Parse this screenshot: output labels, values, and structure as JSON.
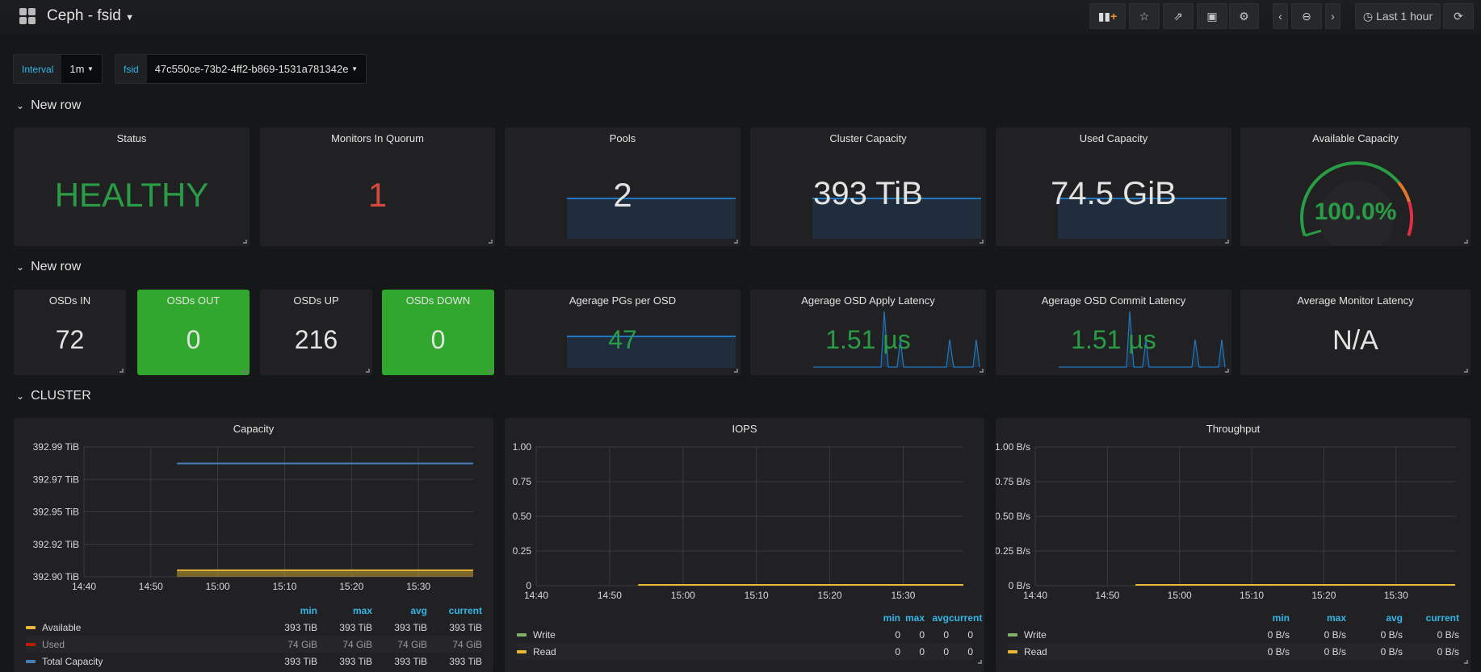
{
  "header": {
    "title": "Ceph - fsid",
    "time_range": "Last 1 hour"
  },
  "toolbar": {
    "icons": [
      "add-panel-icon",
      "star-icon",
      "share-icon",
      "save-icon",
      "gear-icon",
      "chevron-left-icon",
      "zoom-out-icon",
      "chevron-right-icon",
      "clock-icon",
      "refresh-icon"
    ]
  },
  "variables": [
    {
      "label": "Interval",
      "value": "1m"
    },
    {
      "label": "fsid",
      "value": "47c550ce-73b2-4ff2-b869-1531a781342e"
    }
  ],
  "rows": [
    {
      "title": "New row"
    },
    {
      "title": "New row"
    },
    {
      "title": "CLUSTER"
    }
  ],
  "stats1": [
    {
      "title": "Status",
      "value": "HEALTHY",
      "color": "#299c46"
    },
    {
      "title": "Monitors In Quorum",
      "value": "1",
      "color": "#d44a3a"
    },
    {
      "title": "Pools",
      "value": "2",
      "color": "#e3e3e3"
    },
    {
      "title": "Cluster Capacity",
      "value": "393 TiB",
      "color": "#e3e3e3"
    },
    {
      "title": "Used Capacity",
      "value": "74.5 GiB",
      "color": "#e3e3e3"
    },
    {
      "title": "Available Capacity",
      "value": "100.0%",
      "color": "#299c46",
      "gauge_percent": 100
    }
  ],
  "stats2": [
    {
      "title": "OSDs IN",
      "value": "72"
    },
    {
      "title": "OSDs OUT",
      "value": "0"
    },
    {
      "title": "OSDs UP",
      "value": "216"
    },
    {
      "title": "OSDs DOWN",
      "value": "0"
    },
    {
      "title": "Agerage PGs per OSD",
      "value": "47"
    },
    {
      "title": "Agerage OSD Apply Latency",
      "value": "1.51 µs"
    },
    {
      "title": "Agerage OSD Commit Latency",
      "value": "1.51 µs"
    },
    {
      "title": "Average Monitor Latency",
      "value": "N/A"
    }
  ],
  "legend_headers": [
    "min",
    "max",
    "avg",
    "current"
  ],
  "chart_data": [
    {
      "type": "line",
      "title": "Capacity",
      "x_ticks": [
        "14:40",
        "14:50",
        "15:00",
        "15:10",
        "15:20",
        "15:30"
      ],
      "y_ticks": [
        "392.99 TiB",
        "392.97 TiB",
        "392.95 TiB",
        "392.92 TiB",
        "392.90 TiB"
      ],
      "ylim": [
        392.9,
        392.99
      ],
      "xlim_minutes_after_1440": [
        0,
        58.2
      ],
      "series": [
        {
          "name": "Available",
          "color": "#eab839",
          "values": {
            "min": "393 TiB",
            "max": "393 TiB",
            "avg": "393 TiB",
            "current": "393 TiB"
          },
          "start": 13.9,
          "level": 392.904,
          "fill": true
        },
        {
          "name": "Used",
          "color": "#bf1b00",
          "values": {
            "min": "74 GiB",
            "max": "74 GiB",
            "avg": "74 GiB",
            "current": "74 GiB"
          },
          "start": 13.9,
          "level": 0,
          "fill": false
        },
        {
          "name": "Total Capacity",
          "color": "#447ebc",
          "values": {
            "min": "393 TiB",
            "max": "393 TiB",
            "avg": "393 TiB",
            "current": "393 TiB"
          },
          "start": 13.9,
          "level": 392.978,
          "fill": false
        }
      ]
    },
    {
      "type": "line",
      "title": "IOPS",
      "x_ticks": [
        "14:40",
        "14:50",
        "15:00",
        "15:10",
        "15:20",
        "15:30"
      ],
      "y_ticks": [
        "1.00",
        "0.75",
        "0.50",
        "0.25",
        "0"
      ],
      "ylim": [
        0,
        1
      ],
      "xlim_minutes_after_1440": [
        0,
        58.2
      ],
      "series": [
        {
          "name": "Write",
          "color": "#7eb26d",
          "values": {
            "min": "0",
            "max": "0",
            "avg": "0",
            "current": "0"
          },
          "start": 13.9,
          "level": 0
        },
        {
          "name": "Read",
          "color": "#eab839",
          "values": {
            "min": "0",
            "max": "0",
            "avg": "0",
            "current": "0"
          },
          "start": 13.9,
          "level": 0
        }
      ]
    },
    {
      "type": "line",
      "title": "Throughput",
      "x_ticks": [
        "14:40",
        "14:50",
        "15:00",
        "15:10",
        "15:20",
        "15:30"
      ],
      "y_ticks": [
        "1.00 B/s",
        "0.75 B/s",
        "0.50 B/s",
        "0.25 B/s",
        "0 B/s"
      ],
      "ylim": [
        0,
        1
      ],
      "xlim_minutes_after_1440": [
        0,
        58.2
      ],
      "series": [
        {
          "name": "Write",
          "color": "#7eb26d",
          "values": {
            "min": "0 B/s",
            "max": "0 B/s",
            "avg": "0 B/s",
            "current": "0 B/s"
          },
          "start": 13.9,
          "level": 0
        },
        {
          "name": "Read",
          "color": "#eab839",
          "values": {
            "min": "0 B/s",
            "max": "0 B/s",
            "avg": "0 B/s",
            "current": "0 B/s"
          },
          "start": 13.9,
          "level": 0
        }
      ]
    }
  ]
}
